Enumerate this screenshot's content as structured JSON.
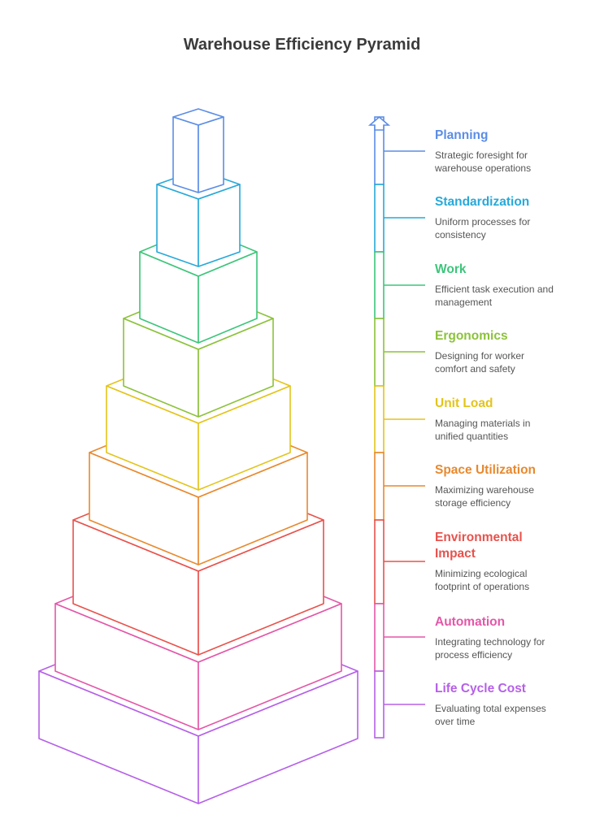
{
  "title": "Warehouse Efficiency Pyramid",
  "levels": [
    {
      "name": "Planning",
      "description": "Strategic foresight for warehouse operations",
      "color": "#5b8de6"
    },
    {
      "name": "Standardization",
      "description": "Uniform processes for consistency",
      "color": "#27a9d9"
    },
    {
      "name": "Work",
      "description": "Efficient task execution and management",
      "color": "#3cc57a"
    },
    {
      "name": "Ergonomics",
      "description": "Designing for worker comfort and safety",
      "color": "#8cc23a"
    },
    {
      "name": "Unit Load",
      "description": "Managing materials in unified quantities",
      "color": "#e3c41c"
    },
    {
      "name": "Space Utilization",
      "description": "Maximizing warehouse storage efficiency",
      "color": "#e8892e"
    },
    {
      "name": "Environmental Impact",
      "description": "Minimizing ecological footprint of operations",
      "color": "#e8524c"
    },
    {
      "name": "Automation",
      "description": "Integrating technology for process efficiency",
      "color": "#e457a8"
    },
    {
      "name": "Life Cycle Cost",
      "description": "Evaluating total expenses over time",
      "color": "#b560e8"
    }
  ]
}
